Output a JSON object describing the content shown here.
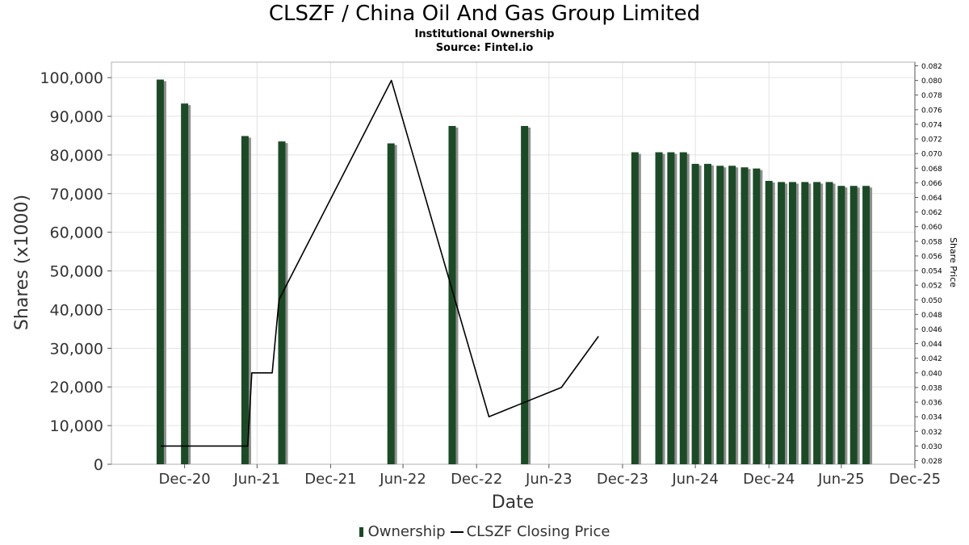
{
  "header": {
    "title": "CLSZF / China Oil And Gas Group Limited",
    "subtitle1": "Institutional Ownership",
    "subtitle2": "Source: Fintel.io"
  },
  "legend": {
    "ownership": "Ownership",
    "price": "CLSZF Closing Price"
  },
  "colors": {
    "bar": "#1c4a27",
    "bar_shadow": "#8f8f8f",
    "line": "#000000",
    "grid": "#e3e3e3"
  },
  "chart_data": {
    "type": "bar",
    "title": "CLSZF / China Oil And Gas Group Limited",
    "xlabel": "Date",
    "ylabel": "Shares (x1000)",
    "y2label": "Share Price",
    "grid": true,
    "legend_position": "bottom",
    "xlim": [
      "2020-07-01",
      "2025-12-31"
    ],
    "ylim": [
      0,
      104000
    ],
    "y2lim": [
      0.0275,
      0.0825
    ],
    "x_ticks": [
      {
        "date": "2020-12-31",
        "label": "Dec-20"
      },
      {
        "date": "2021-06-30",
        "label": "Jun-21"
      },
      {
        "date": "2021-12-31",
        "label": "Dec-21"
      },
      {
        "date": "2022-06-30",
        "label": "Jun-22"
      },
      {
        "date": "2022-12-31",
        "label": "Dec-22"
      },
      {
        "date": "2023-06-30",
        "label": "Jun-23"
      },
      {
        "date": "2023-12-31",
        "label": "Dec-23"
      },
      {
        "date": "2024-06-30",
        "label": "Jun-24"
      },
      {
        "date": "2024-12-31",
        "label": "Dec-24"
      },
      {
        "date": "2025-06-30",
        "label": "Jun-25"
      },
      {
        "date": "2025-12-31",
        "label": "Dec-25"
      }
    ],
    "y_ticks": [
      {
        "value": 0,
        "label": "0"
      },
      {
        "value": 10000,
        "label": "10,000"
      },
      {
        "value": 20000,
        "label": "20,000"
      },
      {
        "value": 30000,
        "label": "30,000"
      },
      {
        "value": 40000,
        "label": "40,000"
      },
      {
        "value": 50000,
        "label": "50,000"
      },
      {
        "value": 60000,
        "label": "60,000"
      },
      {
        "value": 70000,
        "label": "70,000"
      },
      {
        "value": 80000,
        "label": "80,000"
      },
      {
        "value": 90000,
        "label": "90,000"
      },
      {
        "value": 100000,
        "label": "100,000"
      }
    ],
    "y2_ticks": [
      "0.028",
      "0.030",
      "0.032",
      "0.034",
      "0.036",
      "0.038",
      "0.040",
      "0.042",
      "0.044",
      "0.046",
      "0.048",
      "0.050",
      "0.052",
      "0.054",
      "0.056",
      "0.058",
      "0.060",
      "0.062",
      "0.064",
      "0.066",
      "0.068",
      "0.070",
      "0.072",
      "0.074",
      "0.076",
      "0.078",
      "0.080",
      "0.082"
    ],
    "series": [
      {
        "name": "Ownership",
        "kind": "bar",
        "points": [
          {
            "x": "2020-10-31",
            "y": 99500
          },
          {
            "x": "2020-12-31",
            "y": 93300
          },
          {
            "x": "2021-05-31",
            "y": 84900
          },
          {
            "x": "2021-08-31",
            "y": 83500
          },
          {
            "x": "2022-05-31",
            "y": 83000
          },
          {
            "x": "2022-10-31",
            "y": 87500
          },
          {
            "x": "2023-04-30",
            "y": 87500
          },
          {
            "x": "2024-01-31",
            "y": 80700
          },
          {
            "x": "2024-03-31",
            "y": 80700
          },
          {
            "x": "2024-04-30",
            "y": 80700
          },
          {
            "x": "2024-05-31",
            "y": 80700
          },
          {
            "x": "2024-06-30",
            "y": 77700
          },
          {
            "x": "2024-07-31",
            "y": 77700
          },
          {
            "x": "2024-08-31",
            "y": 77200
          },
          {
            "x": "2024-09-30",
            "y": 77200
          },
          {
            "x": "2024-10-31",
            "y": 76800
          },
          {
            "x": "2024-11-30",
            "y": 76500
          },
          {
            "x": "2024-12-31",
            "y": 73300
          },
          {
            "x": "2025-01-31",
            "y": 73000
          },
          {
            "x": "2025-02-28",
            "y": 73000
          },
          {
            "x": "2025-03-31",
            "y": 73000
          },
          {
            "x": "2025-04-30",
            "y": 73000
          },
          {
            "x": "2025-05-31",
            "y": 73000
          },
          {
            "x": "2025-06-30",
            "y": 72000
          },
          {
            "x": "2025-07-31",
            "y": 72000
          },
          {
            "x": "2025-08-31",
            "y": 72000
          }
        ]
      },
      {
        "name": "CLSZF Closing Price",
        "kind": "line",
        "axis": "right",
        "points": [
          {
            "x": "2020-11-01",
            "y": 0.03
          },
          {
            "x": "2021-06-07",
            "y": 0.03
          },
          {
            "x": "2021-06-17",
            "y": 0.04
          },
          {
            "x": "2021-08-07",
            "y": 0.04
          },
          {
            "x": "2021-08-24",
            "y": 0.05
          },
          {
            "x": "2022-06-01",
            "y": 0.08
          },
          {
            "x": "2023-01-31",
            "y": 0.034
          },
          {
            "x": "2023-07-31",
            "y": 0.038
          },
          {
            "x": "2023-11-01",
            "y": 0.045
          }
        ]
      }
    ]
  }
}
